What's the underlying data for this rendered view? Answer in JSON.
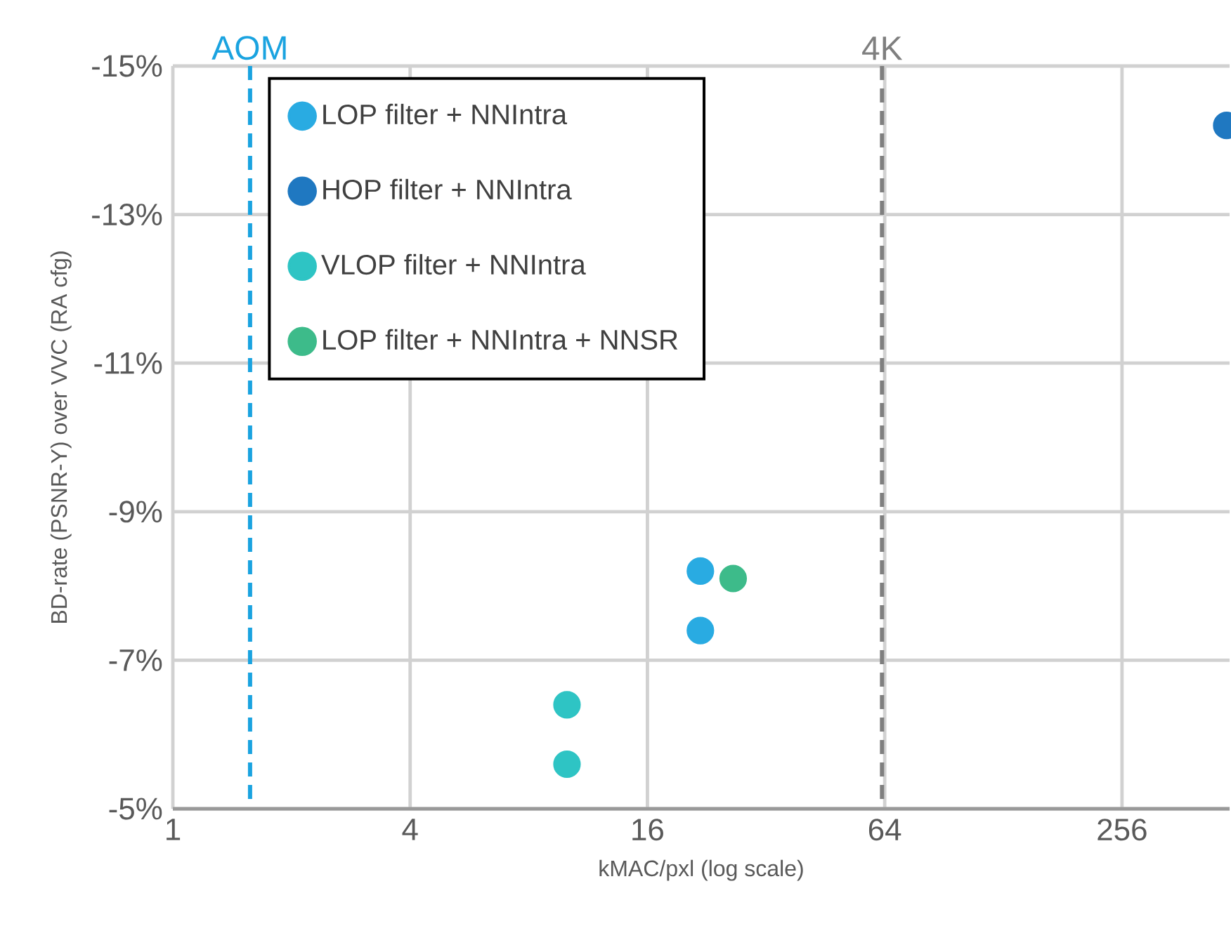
{
  "chart_data": {
    "type": "scatter",
    "xlabel": "kMAC/pxl (log scale)",
    "ylabel": "BD-rate (PSNR-Y) over VVC (RA cfg)",
    "log": "x",
    "xlim": [
      1,
      480
    ],
    "xticks": [
      1,
      4,
      16,
      64,
      256
    ],
    "ylim": [
      -5,
      -15
    ],
    "yticks": [
      {
        "value": -15,
        "label": "-15%"
      },
      {
        "value": -13,
        "label": "-13%"
      },
      {
        "value": -11,
        "label": "-11%"
      },
      {
        "value": -9,
        "label": "-9%"
      },
      {
        "value": -7,
        "label": "-7%"
      },
      {
        "value": -5,
        "label": "-5%"
      }
    ],
    "grid": true,
    "legend": "top left",
    "marker": "circle",
    "series": [
      {
        "name": "LOP filter + NNIntra",
        "color": "#29abe2",
        "x": [
          21.8,
          21.8
        ],
        "values": [
          -8.2,
          -7.4
        ]
      },
      {
        "name": "HOP filter + NNIntra",
        "color": "#1f78c1",
        "x": [
          472
        ],
        "values": [
          -14.2
        ]
      },
      {
        "name": "VLOP filter + NNIntra",
        "color": "#2ec4c4",
        "x": [
          10,
          10
        ],
        "values": [
          -6.4,
          -5.6
        ]
      },
      {
        "name": "LOP filter + NNIntra + NNSR",
        "color": "#3dbb8a",
        "x": [
          26.4
        ],
        "values": [
          -8.1
        ]
      }
    ],
    "ref_lines": [
      {
        "axis": "x",
        "value": 1.57,
        "label": "AOM",
        "color": "#1aa3e0",
        "line_style": "dashed"
      },
      {
        "axis": "x",
        "value": 63,
        "label": "4K",
        "color": "#7f7f7f",
        "line_style": "dashed"
      }
    ]
  }
}
